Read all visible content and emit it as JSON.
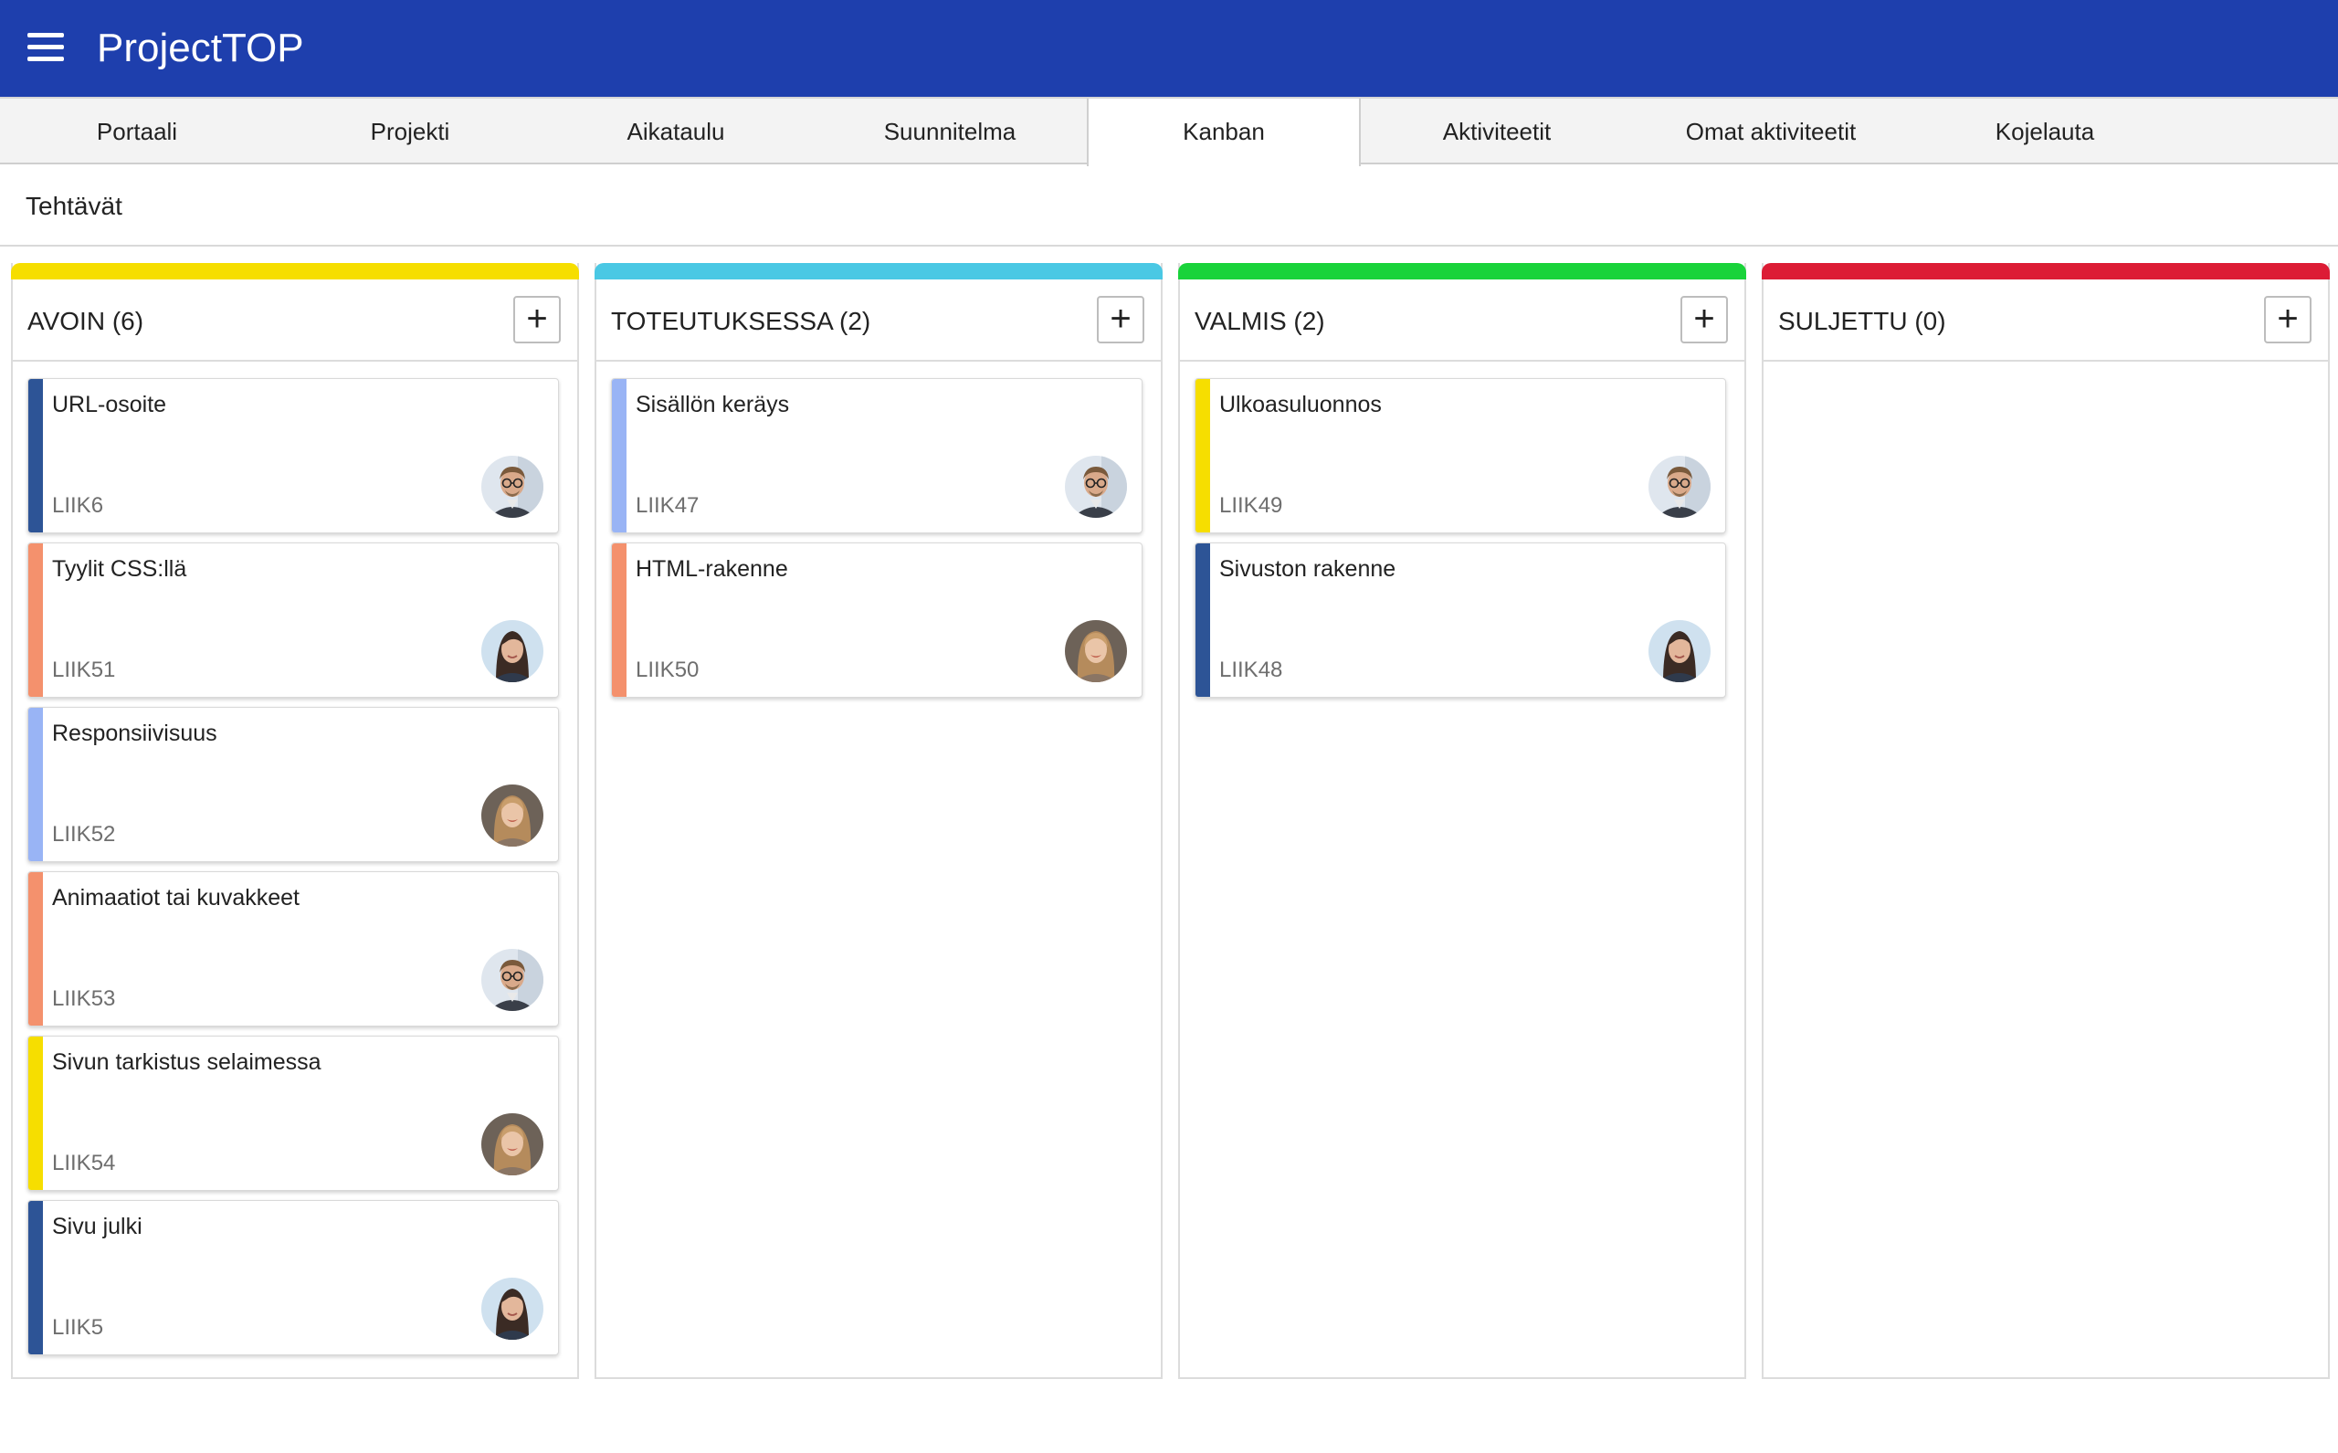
{
  "app": {
    "title": "ProjectTOP"
  },
  "tabs": [
    {
      "label": "Portaali"
    },
    {
      "label": "Projekti"
    },
    {
      "label": "Aikataulu"
    },
    {
      "label": "Suunnitelma"
    },
    {
      "label": "Kanban",
      "active": true
    },
    {
      "label": "Aktiviteetit"
    },
    {
      "label": "Omat aktiviteetit"
    },
    {
      "label": "Kojelauta"
    }
  ],
  "section": {
    "title": "Tehtävät"
  },
  "add_label": "+",
  "columns": [
    {
      "title": "AVOIN (6)",
      "color": "#f6de00",
      "cards": [
        {
          "title": "URL-osoite",
          "id": "LIIK6",
          "accent": "#2d5496",
          "assignee": "man-glasses"
        },
        {
          "title": "Tyylit CSS:llä",
          "id": "LIIK51",
          "accent": "#f4916d",
          "assignee": "woman-dark-hair"
        },
        {
          "title": "Responsiivisuus",
          "id": "LIIK52",
          "accent": "#99b4f5",
          "assignee": "woman-blonde"
        },
        {
          "title": "Animaatiot tai kuvakkeet",
          "id": "LIIK53",
          "accent": "#f4916d",
          "assignee": "man-glasses"
        },
        {
          "title": "Sivun tarkistus selaimessa",
          "id": "LIIK54",
          "accent": "#f6de00",
          "assignee": "woman-blonde"
        },
        {
          "title": "Sivu julki",
          "id": "LIIK5",
          "accent": "#2d5496",
          "assignee": "woman-dark-hair"
        }
      ]
    },
    {
      "title": "TOTEUTUKSESSA (2)",
      "color": "#4ac8e4",
      "cards": [
        {
          "title": "Sisällön keräys",
          "id": "LIIK47",
          "accent": "#99b4f5",
          "assignee": "man-glasses"
        },
        {
          "title": "HTML-rakenne",
          "id": "LIIK50",
          "accent": "#f4916d",
          "assignee": "woman-blonde"
        }
      ]
    },
    {
      "title": "VALMIS (2)",
      "color": "#19d33a",
      "cards": [
        {
          "title": "Ulkoasuluonnos",
          "id": "LIIK49",
          "accent": "#f6de00",
          "assignee": "man-glasses"
        },
        {
          "title": "Sivuston rakenne",
          "id": "LIIK48",
          "accent": "#2d5496",
          "assignee": "woman-dark-hair"
        }
      ]
    },
    {
      "title": "SULJETTU (0)",
      "color": "#dc1c35",
      "cards": []
    }
  ]
}
